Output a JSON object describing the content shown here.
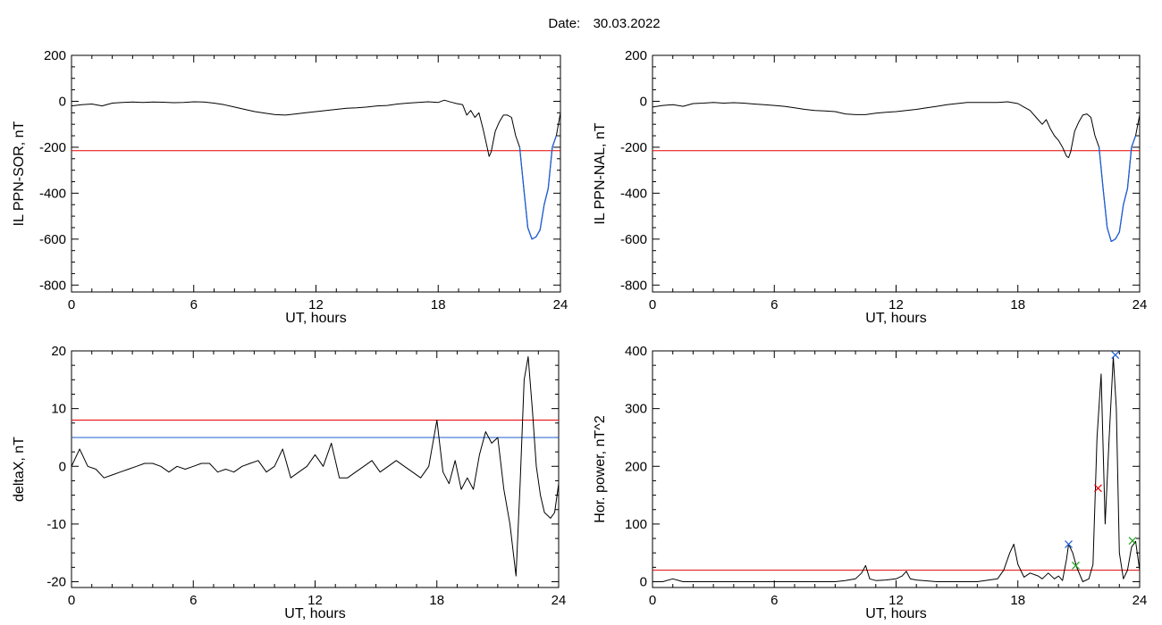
{
  "header": {
    "date_label": "Date:",
    "date_value": "30.03.2022"
  },
  "chart_data": [
    {
      "id": "p1",
      "type": "line",
      "xlabel": "UT, hours",
      "ylabel": "IL PPN-SOR, nT",
      "xlim": [
        0,
        24
      ],
      "ylim": [
        -830,
        200
      ],
      "xticks": [
        0,
        6,
        12,
        18,
        24
      ],
      "yticks": [
        -800,
        -600,
        -400,
        -200,
        0,
        200
      ],
      "series": [
        {
          "color": "#000000",
          "x": [
            0,
            0.5,
            1,
            1.5,
            2,
            2.5,
            3,
            3.5,
            4,
            4.5,
            5,
            5.5,
            6,
            6.5,
            7,
            7.5,
            8,
            8.5,
            9,
            9.5,
            10,
            10.5,
            11,
            11.5,
            12,
            12.5,
            13,
            13.5,
            14,
            14.5,
            15,
            15.5,
            16,
            16.5,
            17,
            17.5,
            18,
            18.3,
            18.6,
            18.9,
            19.2,
            19.4,
            19.6,
            19.8,
            20,
            20.2,
            20.4,
            20.5,
            20.6,
            20.8,
            21,
            21.2,
            21.4,
            21.6,
            21.8,
            22,
            22.2,
            22.4,
            22.6,
            22.8,
            23,
            23.2,
            23.4,
            23.6,
            23.8,
            24
          ],
          "y": [
            -20,
            -15,
            -12,
            -20,
            -8,
            -5,
            -3,
            -5,
            -3,
            -4,
            -6,
            -5,
            -2,
            -3,
            -8,
            -15,
            -25,
            -35,
            -45,
            -52,
            -58,
            -60,
            -55,
            -50,
            -45,
            -40,
            -35,
            -30,
            -28,
            -25,
            -20,
            -18,
            -12,
            -8,
            -5,
            -2,
            -5,
            5,
            -3,
            -10,
            -15,
            -60,
            -40,
            -70,
            -50,
            -120,
            -200,
            -240,
            -220,
            -130,
            -90,
            -60,
            -60,
            -70,
            -150,
            -200,
            -380,
            -550,
            -600,
            -590,
            -560,
            -450,
            -380,
            -200,
            -150,
            -50
          ]
        },
        {
          "color": "#1f5fd6",
          "x": [
            22,
            22.2,
            22.4,
            22.6,
            22.8,
            23,
            23.2,
            23.4,
            23.6,
            23.8
          ],
          "y": [
            -200,
            -380,
            -550,
            -600,
            -590,
            -560,
            -450,
            -380,
            -200,
            -150
          ]
        }
      ],
      "hlines": [
        {
          "y": -215,
          "color": "#e60000"
        }
      ]
    },
    {
      "id": "p2",
      "type": "line",
      "xlabel": "UT, hours",
      "ylabel": "IL PPN-NAL, nT",
      "xlim": [
        0,
        24
      ],
      "ylim": [
        -830,
        200
      ],
      "xticks": [
        0,
        6,
        12,
        18,
        24
      ],
      "yticks": [
        -800,
        -600,
        -400,
        -200,
        0,
        200
      ],
      "series": [
        {
          "color": "#000000",
          "x": [
            0,
            0.5,
            1,
            1.5,
            2,
            2.5,
            3,
            3.5,
            4,
            4.5,
            5,
            5.5,
            6,
            6.5,
            7,
            7.5,
            8,
            8.5,
            9,
            9.5,
            10,
            10.5,
            11,
            11.5,
            12,
            12.5,
            13,
            13.5,
            14,
            14.5,
            15,
            15.5,
            16,
            16.5,
            17,
            17.5,
            18,
            18.3,
            18.6,
            18.9,
            19.2,
            19.4,
            19.6,
            19.8,
            20,
            20.2,
            20.4,
            20.5,
            20.6,
            20.8,
            21,
            21.2,
            21.4,
            21.6,
            21.8,
            22,
            22.2,
            22.4,
            22.6,
            22.8,
            23,
            23.2,
            23.4,
            23.6,
            23.8,
            24
          ],
          "y": [
            -25,
            -18,
            -15,
            -22,
            -10,
            -8,
            -5,
            -8,
            -6,
            -8,
            -12,
            -15,
            -18,
            -22,
            -28,
            -35,
            -40,
            -42,
            -45,
            -55,
            -58,
            -58,
            -52,
            -48,
            -45,
            -40,
            -35,
            -28,
            -22,
            -15,
            -10,
            -5,
            -5,
            -5,
            -5,
            -2,
            -10,
            -25,
            -40,
            -70,
            -100,
            -80,
            -120,
            -150,
            -170,
            -200,
            -240,
            -245,
            -220,
            -130,
            -90,
            -60,
            -55,
            -70,
            -150,
            -200,
            -380,
            -550,
            -610,
            -600,
            -570,
            -450,
            -380,
            -200,
            -150,
            -60
          ]
        },
        {
          "color": "#1f5fd6",
          "x": [
            22,
            22.2,
            22.4,
            22.6,
            22.8,
            23,
            23.2,
            23.4,
            23.6,
            23.8
          ],
          "y": [
            -200,
            -380,
            -550,
            -610,
            -600,
            -570,
            -450,
            -380,
            -200,
            -150
          ]
        }
      ],
      "hlines": [
        {
          "y": -215,
          "color": "#e60000"
        }
      ]
    },
    {
      "id": "p3",
      "type": "line",
      "xlabel": "UT, hours",
      "ylabel": "deltaX, nT",
      "xlim": [
        0,
        24
      ],
      "ylim": [
        -21,
        20
      ],
      "xticks": [
        0,
        6,
        12,
        18,
        24
      ],
      "yticks": [
        -20,
        -10,
        0,
        10,
        20
      ],
      "series": [
        {
          "color": "#000000",
          "x": [
            0,
            0.4,
            0.8,
            1.2,
            1.6,
            2,
            2.4,
            2.8,
            3.2,
            3.6,
            4,
            4.4,
            4.8,
            5.2,
            5.6,
            6,
            6.4,
            6.8,
            7.2,
            7.6,
            8,
            8.4,
            8.8,
            9.2,
            9.6,
            10,
            10.4,
            10.8,
            11.2,
            11.6,
            12,
            12.4,
            12.8,
            13.2,
            13.6,
            14,
            14.4,
            14.8,
            15.2,
            15.6,
            16,
            16.4,
            16.8,
            17.2,
            17.6,
            18,
            18.3,
            18.6,
            18.9,
            19.2,
            19.5,
            19.8,
            20.1,
            20.4,
            20.7,
            21,
            21.3,
            21.6,
            21.9,
            22.1,
            22.3,
            22.5,
            22.7,
            22.9,
            23.1,
            23.3,
            23.6,
            23.8,
            24
          ],
          "y": [
            0,
            3,
            0,
            -0.5,
            -2,
            -1.5,
            -1,
            -0.5,
            0,
            0.5,
            0.5,
            0,
            -1,
            0,
            -0.5,
            0,
            0.5,
            0.5,
            -1,
            -0.5,
            -1,
            0,
            0.5,
            1,
            -1,
            0,
            3,
            -2,
            -1,
            0,
            2,
            0,
            4,
            -2,
            -2,
            -1,
            0,
            1,
            -1,
            0,
            1,
            0,
            -1,
            -2,
            0,
            8,
            -1,
            -3,
            1,
            -4,
            -2,
            -4,
            2,
            6,
            4,
            5,
            -4,
            -10,
            -19,
            -3,
            15,
            19,
            10,
            0,
            -5,
            -8,
            -9,
            -8,
            -3
          ]
        }
      ],
      "hlines": [
        {
          "y": 8,
          "color": "#e60000"
        },
        {
          "y": 5,
          "color": "#1f5fd6"
        }
      ]
    },
    {
      "id": "p4",
      "type": "line",
      "xlabel": "UT, hours",
      "ylabel": "Hor. power, nT^2",
      "xlim": [
        0,
        24
      ],
      "ylim": [
        -10,
        400
      ],
      "xticks": [
        0,
        6,
        12,
        18,
        24
      ],
      "yticks": [
        0,
        100,
        200,
        300,
        400
      ],
      "series": [
        {
          "color": "#000000",
          "x": [
            0,
            0.5,
            1,
            1.5,
            2,
            3,
            4,
            5,
            6,
            7,
            8,
            9,
            9.5,
            10,
            10.3,
            10.5,
            10.7,
            11,
            11.5,
            12,
            12.3,
            12.5,
            12.7,
            13,
            14,
            15,
            16,
            17,
            17.3,
            17.6,
            17.8,
            18,
            18.3,
            18.6,
            19,
            19.2,
            19.5,
            19.8,
            20,
            20.2,
            20.4,
            20.5,
            20.7,
            20.9,
            21.2,
            21.5,
            21.7,
            21.9,
            22.1,
            22.3,
            22.5,
            22.7,
            22.85,
            23,
            23.2,
            23.4,
            23.6,
            23.8,
            24
          ],
          "y": [
            0,
            0,
            5,
            0,
            0,
            0,
            0,
            0,
            0,
            0,
            0,
            0,
            2,
            5,
            15,
            28,
            5,
            2,
            3,
            5,
            10,
            18,
            5,
            3,
            0,
            0,
            0,
            5,
            20,
            50,
            65,
            30,
            8,
            15,
            10,
            5,
            15,
            5,
            10,
            2,
            40,
            65,
            50,
            25,
            0,
            5,
            30,
            250,
            360,
            100,
            250,
            390,
            300,
            50,
            5,
            20,
            60,
            70,
            20
          ]
        }
      ],
      "hlines": [
        {
          "y": 20,
          "color": "#e60000"
        }
      ],
      "markers": [
        {
          "x": 20.5,
          "y": 65,
          "color": "#1f5fd6"
        },
        {
          "x": 22.8,
          "y": 393,
          "color": "#1f5fd6"
        },
        {
          "x": 21.95,
          "y": 162,
          "color": "#e60000"
        },
        {
          "x": 20.85,
          "y": 28,
          "color": "#1e9e1e"
        },
        {
          "x": 23.65,
          "y": 71,
          "color": "#1e9e1e"
        }
      ]
    }
  ]
}
